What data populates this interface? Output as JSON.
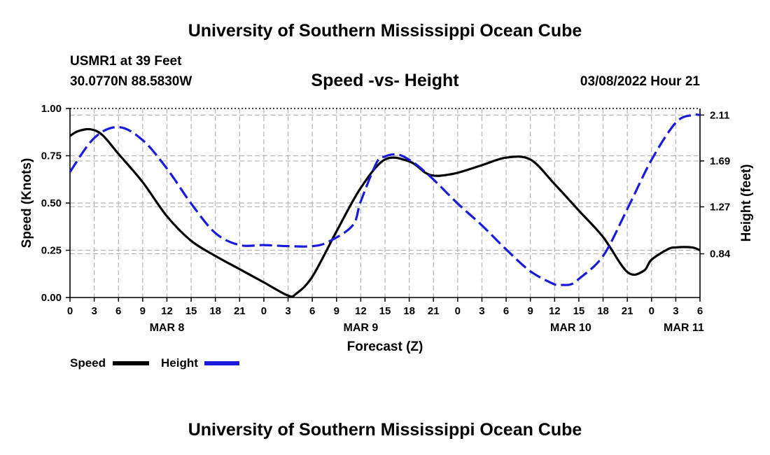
{
  "page": {
    "top_title": "University of Southern Mississippi Ocean Cube",
    "bottom_title": "University of Southern Mississippi Ocean Cube",
    "station": "USMR1 at 39 Feet",
    "location": "30.0770N  88.5830W",
    "datetime": "03/08/2022 Hour 21"
  },
  "legend": {
    "speed_label": "Speed",
    "height_label": "Height"
  },
  "chart_data": {
    "type": "line",
    "title": "Speed -vs- Height",
    "xlabel": "Forecast (Z)",
    "ylabel": "Speed (Knots)",
    "y2label": "Height (feet)",
    "x_range_hours": [
      0,
      78
    ],
    "x_tick_step_hours": 3,
    "x_tick_labels": [
      "0",
      "3",
      "6",
      "9",
      "12",
      "15",
      "18",
      "21",
      "0",
      "3",
      "6",
      "9",
      "12",
      "15",
      "18",
      "21",
      "0",
      "3",
      "6",
      "9",
      "12",
      "15",
      "18",
      "21",
      "0",
      "3",
      "6"
    ],
    "date_labels": [
      {
        "label": "MAR 8",
        "hour": 12
      },
      {
        "label": "MAR 9",
        "hour": 36
      },
      {
        "label": "MAR 10",
        "hour": 62
      },
      {
        "label": "MAR 11",
        "hour": 76
      }
    ],
    "ylim": [
      0,
      1.0
    ],
    "y_ticks": [
      "0.00",
      "0.25",
      "0.50",
      "0.75",
      "1.00"
    ],
    "y2lim": [
      0.44,
      2.17
    ],
    "y2_ticks": [
      "0.84",
      "1.27",
      "1.69",
      "2.11"
    ],
    "grid": true,
    "colors": {
      "speed": "#000000",
      "height": "#1a1adc",
      "grid": "#b4b4b4"
    },
    "series": [
      {
        "name": "Speed",
        "axis": "left",
        "style": "solid",
        "x": [
          0,
          1,
          2.5,
          4,
          6,
          9,
          12,
          15,
          18,
          21,
          24,
          27,
          28,
          30,
          33,
          36,
          39,
          42,
          44,
          45,
          46,
          48,
          51,
          54,
          57,
          60,
          63,
          66,
          69,
          71,
          72,
          74,
          75,
          77,
          78
        ],
        "values": [
          0.855,
          0.88,
          0.89,
          0.86,
          0.76,
          0.61,
          0.43,
          0.3,
          0.22,
          0.15,
          0.08,
          0.01,
          0.02,
          0.11,
          0.35,
          0.58,
          0.73,
          0.72,
          0.66,
          0.645,
          0.645,
          0.66,
          0.7,
          0.74,
          0.73,
          0.6,
          0.46,
          0.32,
          0.135,
          0.14,
          0.2,
          0.255,
          0.265,
          0.265,
          0.25
        ]
      },
      {
        "name": "Height",
        "axis": "right",
        "style": "dashed",
        "x": [
          0,
          3,
          6,
          9,
          12,
          15,
          18,
          21,
          24,
          27,
          30,
          32,
          35,
          36,
          38,
          39,
          40,
          41,
          42,
          43,
          45,
          48,
          51,
          54,
          57,
          60,
          61,
          62,
          63,
          66,
          69,
          72,
          75,
          77,
          78
        ],
        "values": [
          1.59,
          1.9,
          2.0,
          1.88,
          1.62,
          1.3,
          1.03,
          0.92,
          0.92,
          0.91,
          0.91,
          0.95,
          1.1,
          1.32,
          1.68,
          1.73,
          1.75,
          1.74,
          1.7,
          1.65,
          1.52,
          1.3,
          1.1,
          0.88,
          0.68,
          0.56,
          0.555,
          0.56,
          0.61,
          0.82,
          1.25,
          1.7,
          2.04,
          2.11,
          2.11
        ]
      }
    ]
  }
}
